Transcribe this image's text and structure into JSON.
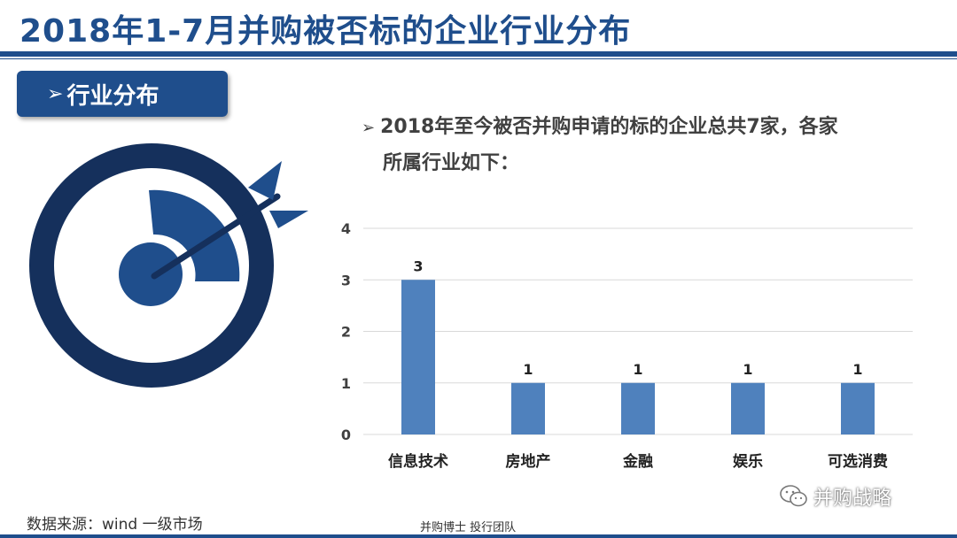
{
  "page": {
    "title": "2018年1-7月并购被否标的企业行业分布",
    "section_label": "行业分布",
    "description_line1": "2018年至今被否并购申请的标的企业总共7家，各家",
    "description_line2": "所属行业如下：",
    "source": "数据来源：wind 一级市场",
    "footer_center": "并购博士 投行团队",
    "watermark": "并购战略",
    "icons": [
      "target-icon",
      "arrow-icon",
      "wechat-icon",
      "chevron-right-icon"
    ]
  },
  "colors": {
    "primary": "#1f4e8c",
    "dark_navy": "#15305c",
    "bar": "#4f81bd",
    "grid": "#d9d9d9"
  },
  "chart_data": {
    "type": "bar",
    "categories": [
      "信息技术",
      "房地产",
      "金融",
      "娱乐",
      "可选消费"
    ],
    "values": [
      3,
      1,
      1,
      1,
      1
    ],
    "data_labels": [
      "3",
      "1",
      "1",
      "1",
      "1"
    ],
    "yticks": [
      "0",
      "1",
      "2",
      "3",
      "4"
    ],
    "ylim": [
      0,
      4
    ],
    "grid": true,
    "legend": "none",
    "title": "",
    "xlabel": "",
    "ylabel": ""
  }
}
